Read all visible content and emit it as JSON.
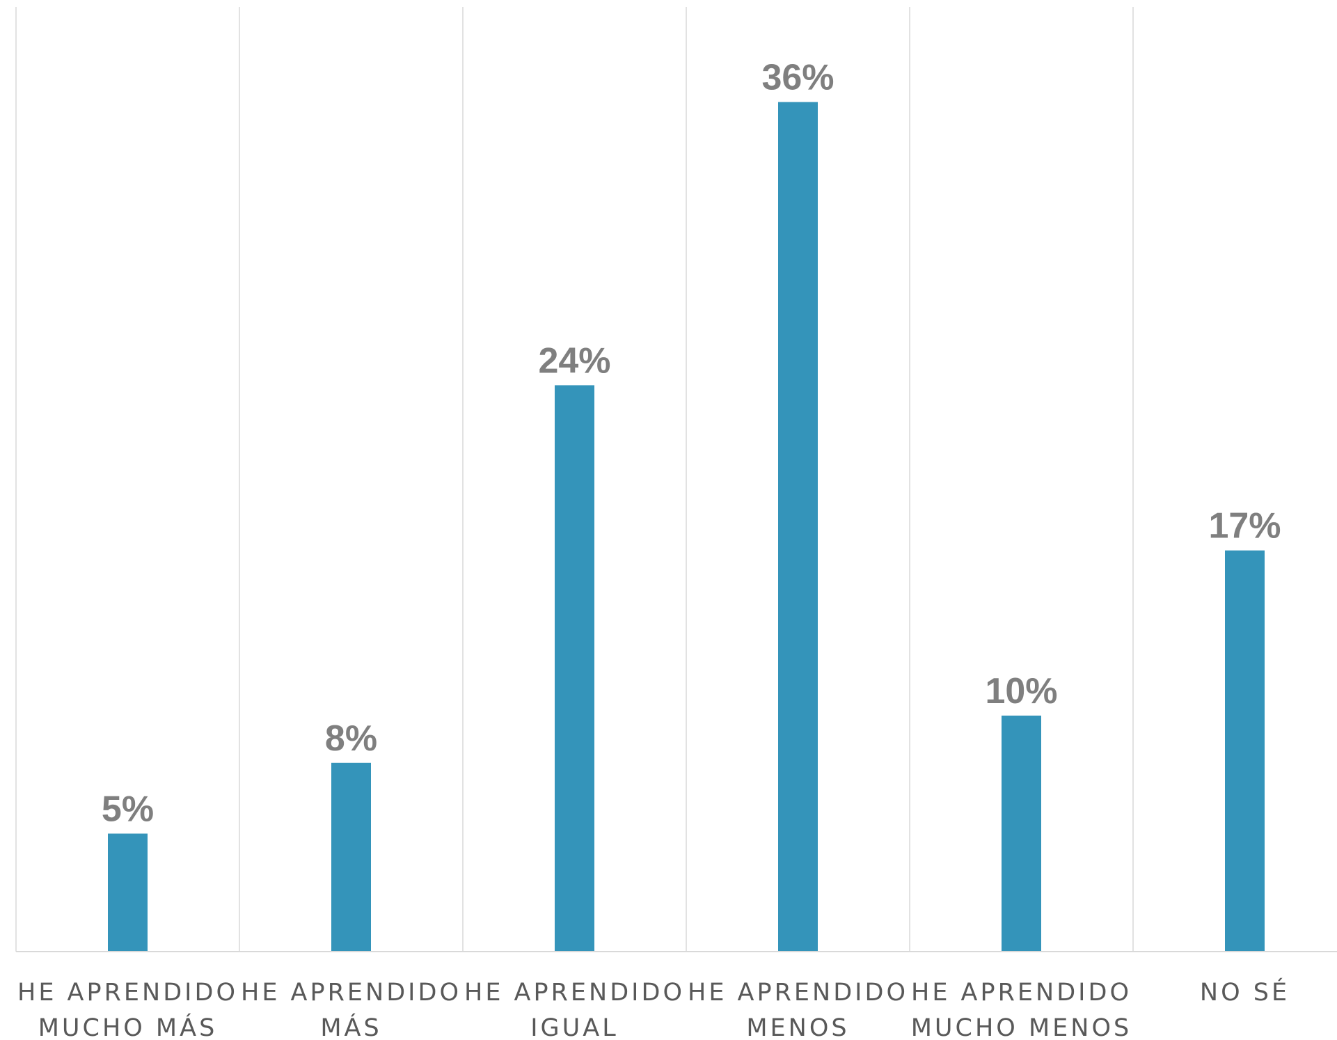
{
  "chart_data": {
    "type": "bar",
    "categories": [
      [
        "HE APRENDIDO",
        "MUCHO MÁS"
      ],
      [
        "HE APRENDIDO",
        "MÁS"
      ],
      [
        "HE APRENDIDO",
        "IGUAL"
      ],
      [
        "HE APRENDIDO",
        "MENOS"
      ],
      [
        "HE APRENDIDO",
        "MUCHO MENOS"
      ],
      [
        "NO SÉ"
      ]
    ],
    "values": [
      5,
      8,
      24,
      36,
      10,
      17
    ],
    "data_labels": [
      "5%",
      "8%",
      "24%",
      "36%",
      "10%",
      "17%"
    ],
    "unit": "%",
    "ylim": [
      0,
      40
    ],
    "grid": "vertical separators between categories",
    "legend": "none",
    "colors": {
      "bar": "#3494BA",
      "data_label": "#7F7F7F",
      "category_label": "#595959",
      "gridline": "#D9D9D9",
      "axis": "#D9D9D9"
    }
  }
}
